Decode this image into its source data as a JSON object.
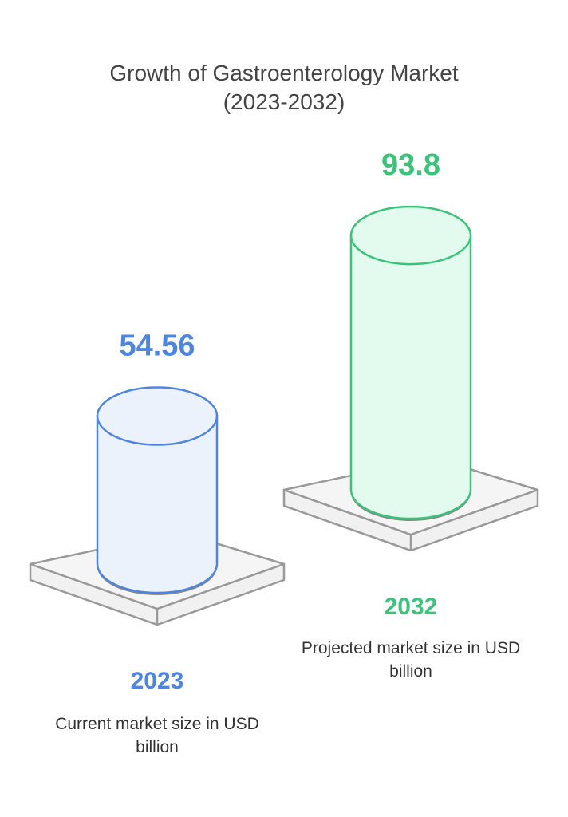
{
  "chart_data": {
    "type": "cylinder",
    "title": "Growth of Gastroenterology Market (2023-2032)",
    "categories": [
      "2023",
      "2032"
    ],
    "values": [
      54.56,
      93.8
    ],
    "descriptions": [
      "Current market size in USD billion",
      "Projected market size in USD billion"
    ],
    "colors": [
      "#4f86dd",
      "#3dc27c"
    ],
    "fills": [
      "#ecf2fc",
      "#e2fbee"
    ]
  }
}
